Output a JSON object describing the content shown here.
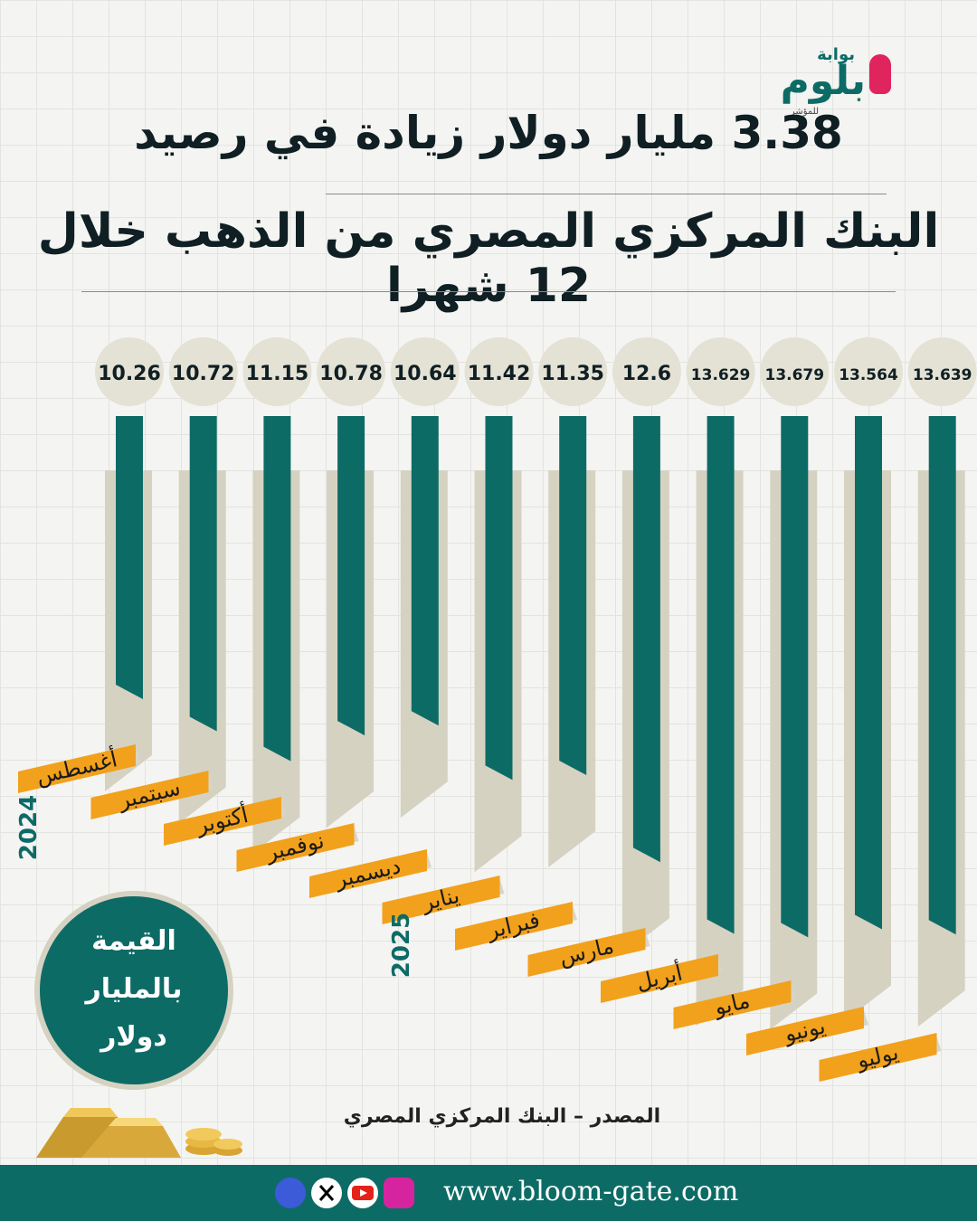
{
  "brand": {
    "logo_sub": "بوابة",
    "logo_main": "بلوم",
    "logo_tag": "للمؤشر"
  },
  "headline": {
    "line1": "3.38 مليار دولار زيادة في رصيد",
    "line2": "البنك المركزي المصري من الذهب خلال 12 شهرا"
  },
  "legend": {
    "line1": "القيمة",
    "line2": "بالمليار",
    "line3": "دولار"
  },
  "source": "المصدر – البنك المركزي المصري",
  "footer": {
    "url": "www.bloom-gate.com",
    "social_icons": [
      "facebook-icon",
      "x-icon",
      "youtube-icon",
      "instagram-icon"
    ]
  },
  "colors": {
    "bar": "#0d6b66",
    "bar_shadow": "#d6d2c2",
    "value_circle": "#e4e1d5",
    "month_tag": "#f2a11c",
    "background": "#f4f4f2"
  },
  "chart_data": {
    "type": "bar",
    "categories": [
      "أغسطس",
      "سبتمبر",
      "أكتوبر",
      "نوفمبر",
      "ديسمبر",
      "يناير",
      "فبراير",
      "مارس",
      "أبريل",
      "مايو",
      "يونيو",
      "يوليو"
    ],
    "values": [
      10.26,
      10.72,
      11.15,
      10.78,
      10.64,
      11.42,
      11.35,
      12.6,
      13.629,
      13.679,
      13.564,
      13.639
    ],
    "value_labels": [
      "10.26",
      "10.72",
      "11.15",
      "10.78",
      "10.64",
      "11.42",
      "11.35",
      "12.6",
      "13.629",
      "13.679",
      "13.564",
      "13.639"
    ],
    "year_labels": [
      {
        "label": "2024",
        "category_index": 0
      },
      {
        "label": "2025",
        "category_index": 5
      }
    ]
  }
}
